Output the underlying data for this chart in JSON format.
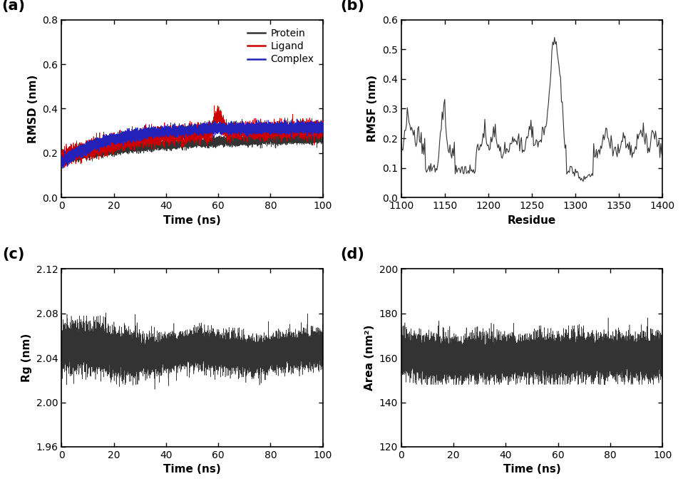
{
  "panel_a": {
    "title": "(a)",
    "xlabel": "Time (ns)",
    "ylabel": "RMSD (nm)",
    "xlim": [
      0,
      100
    ],
    "ylim": [
      0.0,
      0.8
    ],
    "yticks": [
      0.0,
      0.2,
      0.4,
      0.6,
      0.8
    ],
    "xticks": [
      0,
      20,
      40,
      60,
      80,
      100
    ],
    "protein_color": "#333333",
    "ligand_color": "#cc0000",
    "complex_color": "#2222bb",
    "legend_labels": [
      "Protein",
      "Ligand",
      "Complex"
    ]
  },
  "panel_b": {
    "title": "(b)",
    "xlabel": "Residue",
    "ylabel": "RMSF (nm)",
    "xlim": [
      1100,
      1400
    ],
    "ylim": [
      0.0,
      0.6
    ],
    "yticks": [
      0.0,
      0.1,
      0.2,
      0.3,
      0.4,
      0.5,
      0.6
    ],
    "xticks": [
      1100,
      1150,
      1200,
      1250,
      1300,
      1350,
      1400
    ],
    "line_color": "#333333"
  },
  "panel_c": {
    "title": "(c)",
    "xlabel": "Time (ns)",
    "ylabel": "Rg (nm)",
    "xlim": [
      0,
      100
    ],
    "ylim": [
      1.96,
      2.12
    ],
    "yticks": [
      1.96,
      2.0,
      2.04,
      2.08,
      2.12
    ],
    "xticks": [
      0,
      20,
      40,
      60,
      80,
      100
    ],
    "line_color": "#333333"
  },
  "panel_d": {
    "title": "(d)",
    "xlabel": "Time (ns)",
    "ylabel": "Area (nm²)",
    "xlim": [
      0,
      100
    ],
    "ylim": [
      120,
      200
    ],
    "yticks": [
      120,
      140,
      160,
      180,
      200
    ],
    "xticks": [
      0,
      20,
      40,
      60,
      80,
      100
    ],
    "line_color": "#333333"
  },
  "figsize": [
    9.58,
    6.89
  ],
  "dpi": 100
}
